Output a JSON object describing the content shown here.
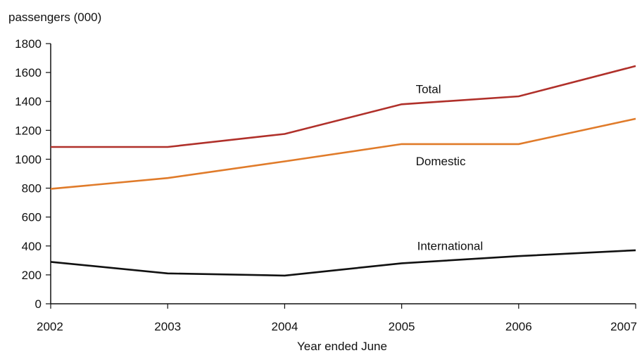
{
  "chart_data": {
    "type": "line",
    "title": "",
    "ylabel": "passengers (000)",
    "xlabel": "Year ended June",
    "x": [
      "2002",
      "2003",
      "2004",
      "2005",
      "2006",
      "2007"
    ],
    "ylim": [
      0,
      1800
    ],
    "yticks": [
      "0",
      "200",
      "400",
      "600",
      "800",
      "1000",
      "1200",
      "1400",
      "1600",
      "1800"
    ],
    "grid": false,
    "legend": "inline labels",
    "series": [
      {
        "name": "Total",
        "color": "#b0302a",
        "values": [
          1085,
          1085,
          1175,
          1380,
          1435,
          1645
        ]
      },
      {
        "name": "Domestic",
        "color": "#e07b2a",
        "values": [
          795,
          870,
          985,
          1105,
          1105,
          1280
        ]
      },
      {
        "name": "International",
        "color": "#111111",
        "values": [
          290,
          210,
          195,
          280,
          330,
          370
        ]
      }
    ]
  }
}
